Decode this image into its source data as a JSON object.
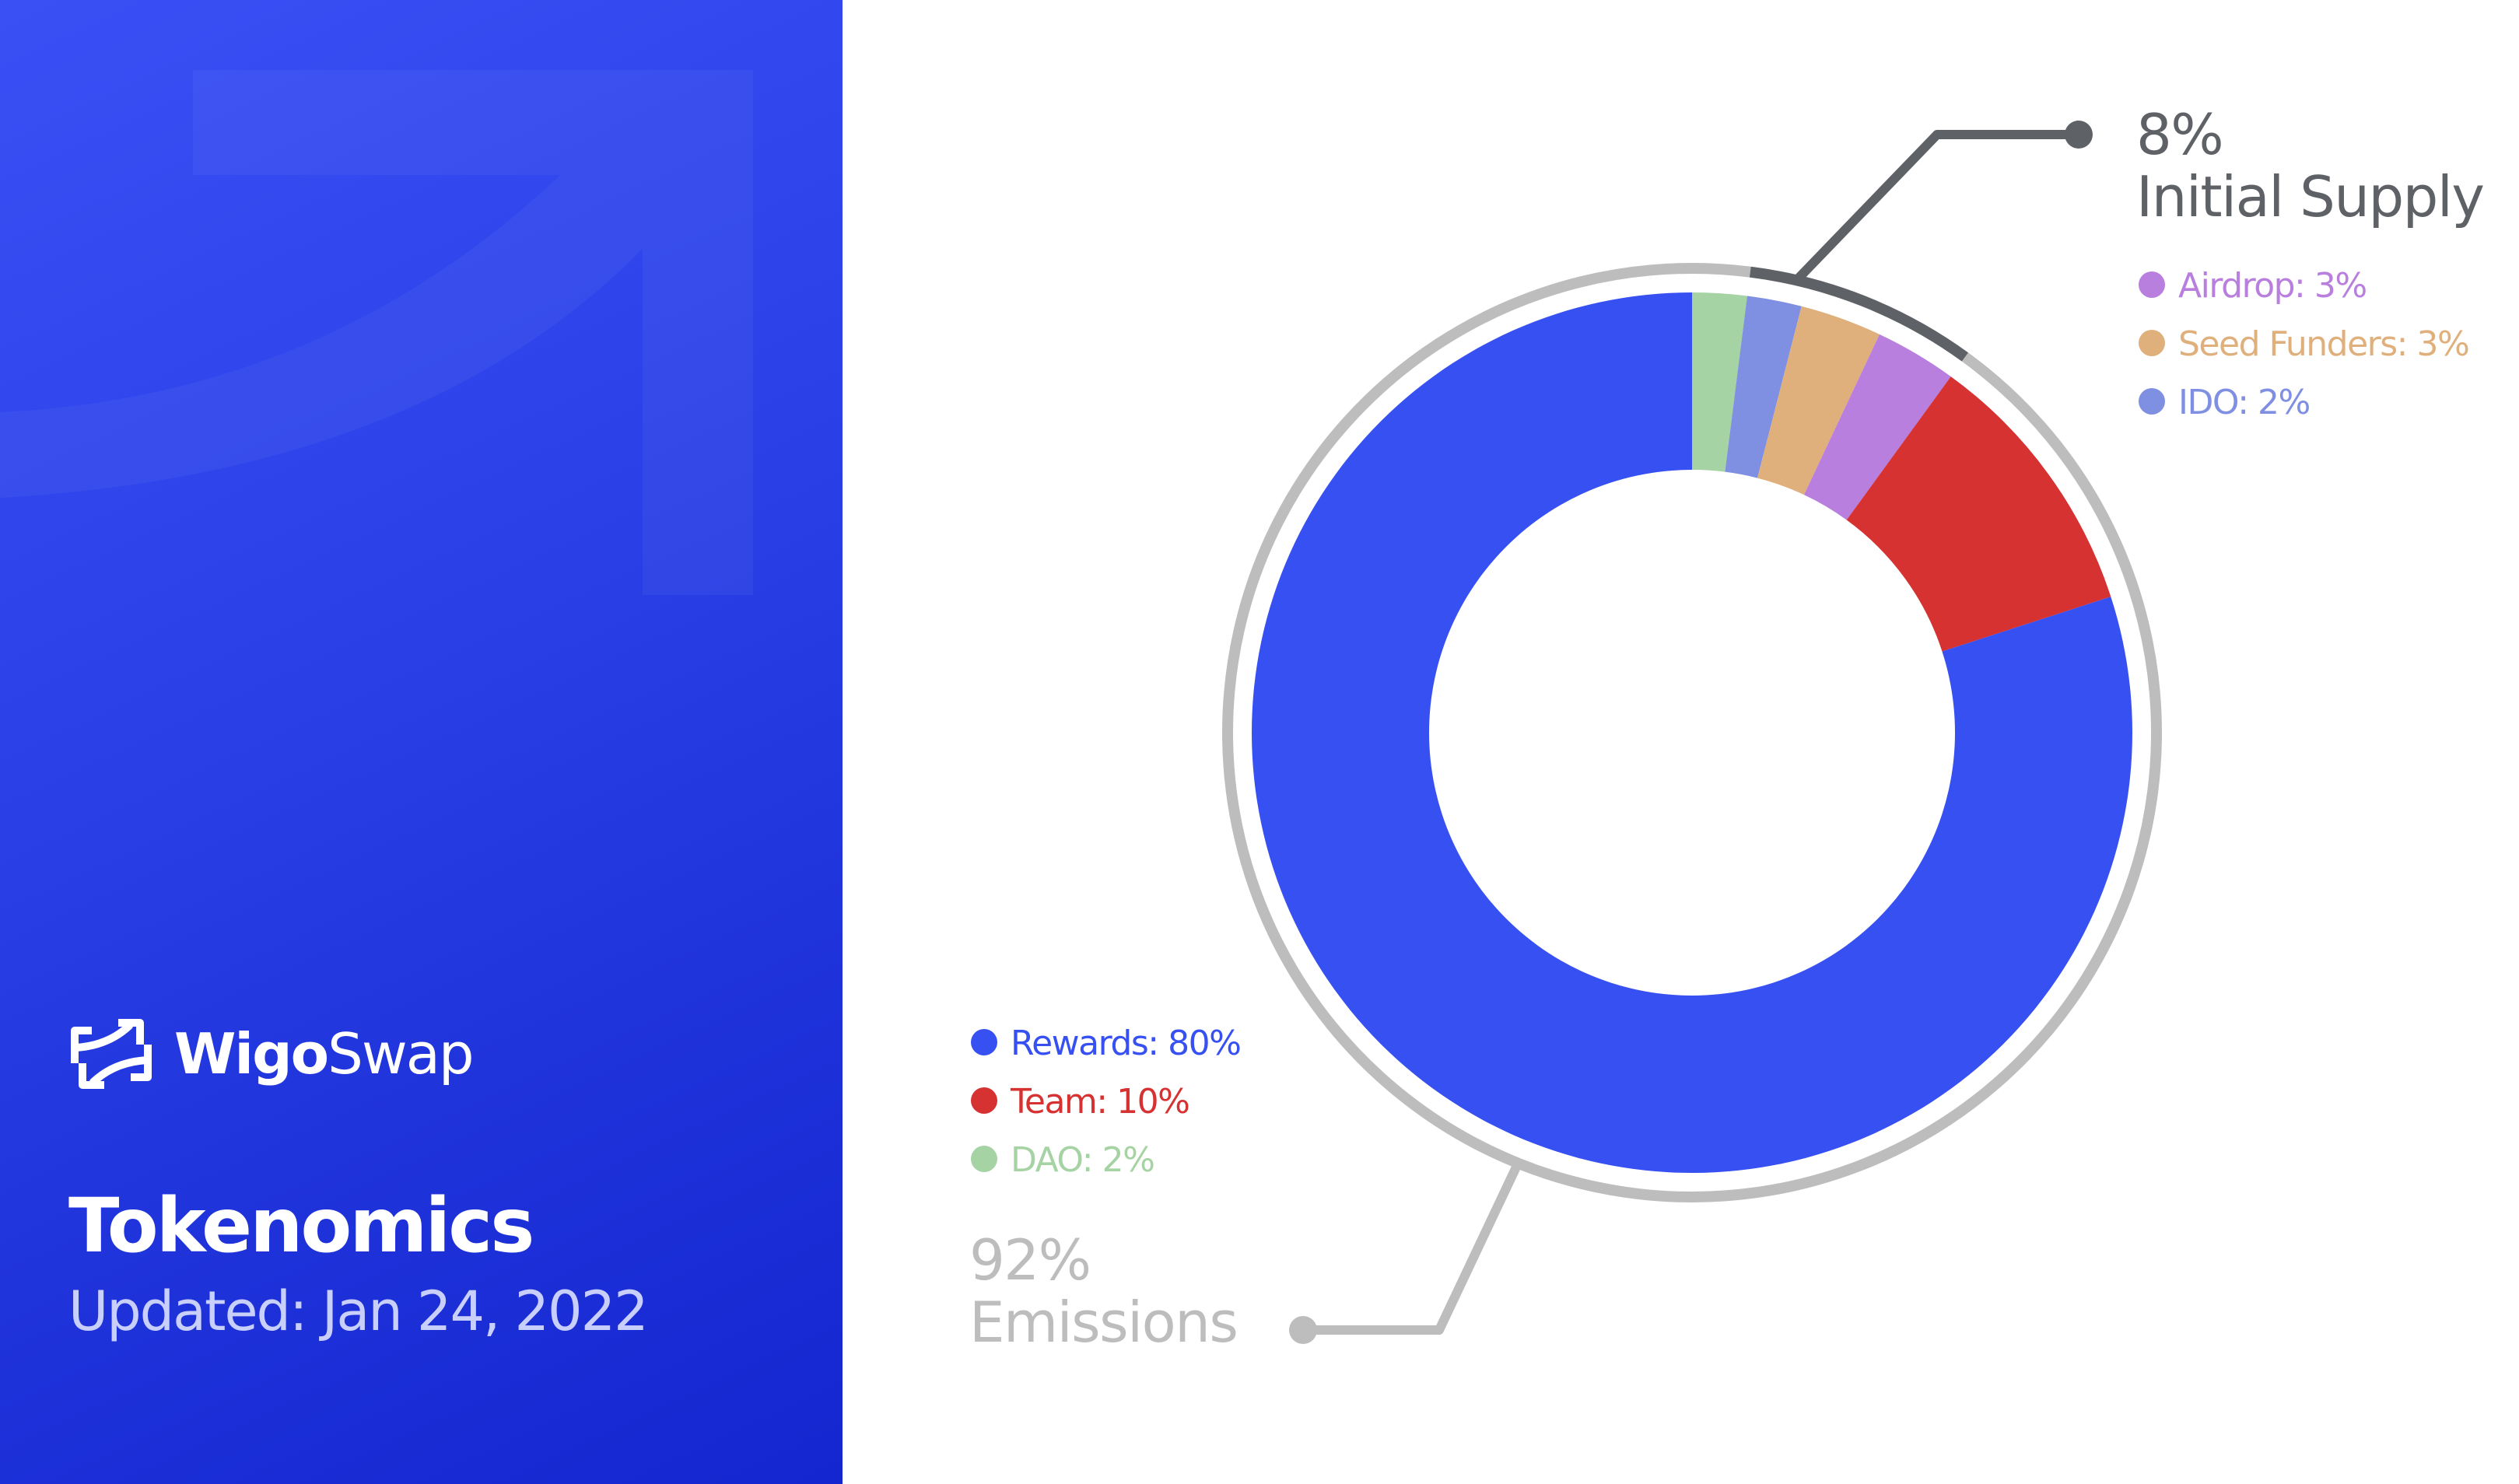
{
  "brand": {
    "name_bold": "Wigo",
    "name_regular": "Swap"
  },
  "title": "Tokenomics",
  "subtitle": "Updated: Jan 24, 2022",
  "colors": {
    "panel": "#2a3fe6",
    "rewards": "#3750f2",
    "team": "#d63232",
    "airdrop": "#b97fde",
    "seed": "#e0b07c",
    "ido": "#7f8fe2",
    "dao": "#a5d3a3",
    "ring_emissions": "#bdbdbd",
    "ring_initial": "#5e6166"
  },
  "chart_data": {
    "type": "pie",
    "title": "",
    "slices": [
      {
        "label": "DAO: 2%",
        "value": 2,
        "color": "#a5d3a3",
        "group": "emissions"
      },
      {
        "label": "IDO: 2%",
        "value": 2,
        "color": "#7f8fe2",
        "group": "initial"
      },
      {
        "label": "Seed Funders: 3%",
        "value": 3,
        "color": "#e0b07c",
        "group": "initial"
      },
      {
        "label": "Airdrop: 3%",
        "value": 3,
        "color": "#b97fde",
        "group": "initial"
      },
      {
        "label": "Team: 10%",
        "value": 10,
        "color": "#d63232",
        "group": "emissions"
      },
      {
        "label": "Rewards: 80%",
        "value": 80,
        "color": "#3750f2",
        "group": "emissions"
      }
    ],
    "groups": [
      {
        "key": "initial",
        "percent": "8%",
        "label": "Initial Supply",
        "value": 8,
        "color": "#5e6166"
      },
      {
        "key": "emissions",
        "percent": "92%",
        "label": "Emissions",
        "value": 92,
        "color": "#bdbdbd"
      }
    ],
    "legend_initial": [
      {
        "label": "Airdrop: 3%",
        "color": "#b97fde"
      },
      {
        "label": "Seed Funders: 3%",
        "color": "#e0b07c"
      },
      {
        "label": "IDO: 2%",
        "color": "#7f8fe2"
      }
    ],
    "legend_emissions": [
      {
        "label": "Rewards: 80%",
        "color": "#3750f2"
      },
      {
        "label": "Team: 10%",
        "color": "#d63232"
      },
      {
        "label": "DAO: 2%",
        "color": "#a5d3a3"
      }
    ]
  }
}
